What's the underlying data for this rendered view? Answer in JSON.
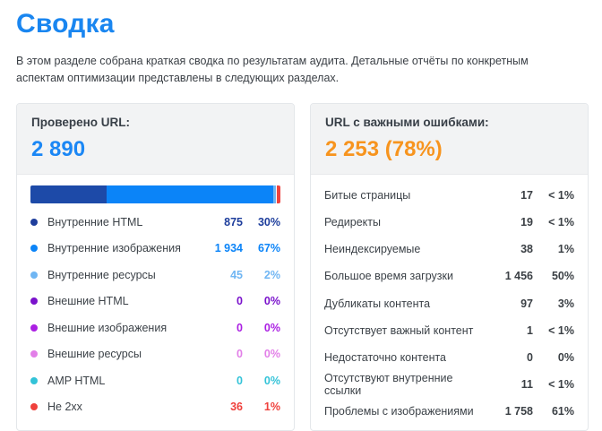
{
  "page": {
    "title": "Сводка",
    "description": "В этом разделе собрана краткая сводка по результатам аудита. Детальные отчёты по конкретным аспектам оптимизации представлены в следующих разделах."
  },
  "checked_card": {
    "title": "Проверено URL:",
    "total": "2 890",
    "total_color": "#1b87f5",
    "legend": [
      {
        "label": "Внутренние HTML",
        "count": "875",
        "percent": "30%",
        "color": "#1e3e9c"
      },
      {
        "label": "Внутренние изображения",
        "count": "1 934",
        "percent": "67%",
        "color": "#0b84f8"
      },
      {
        "label": "Внутренние ресурсы",
        "count": "45",
        "percent": "2%",
        "color": "#70b6f3"
      },
      {
        "label": "Внешние HTML",
        "count": "0",
        "percent": "0%",
        "color": "#7a12cc"
      },
      {
        "label": "Внешние изображения",
        "count": "0",
        "percent": "0%",
        "color": "#ab1fe3"
      },
      {
        "label": "Внешние ресурсы",
        "count": "0",
        "percent": "0%",
        "color": "#e27fe8"
      },
      {
        "label": "AMP HTML",
        "count": "0",
        "percent": "0%",
        "color": "#33c3d8"
      },
      {
        "label": "Не 2xx",
        "count": "36",
        "percent": "1%",
        "color": "#ef413c"
      }
    ]
  },
  "errors_card": {
    "title": "URL с важными ошибками:",
    "total": "2 253 (78%)",
    "total_color": "#f7941e",
    "rows": [
      {
        "label": "Битые страницы",
        "count": "17",
        "percent": "< 1%"
      },
      {
        "label": "Редиректы",
        "count": "19",
        "percent": "< 1%"
      },
      {
        "label": "Неиндексируемые",
        "count": "38",
        "percent": "1%"
      },
      {
        "label": "Большое время загрузки",
        "count": "1 456",
        "percent": "50%"
      },
      {
        "label": "Дубликаты контента",
        "count": "97",
        "percent": "3%"
      },
      {
        "label": "Отсутствует важный контент",
        "count": "1",
        "percent": "< 1%"
      },
      {
        "label": "Недостаточно контента",
        "count": "0",
        "percent": "0%"
      },
      {
        "label": "Отсутствуют внутренние ссылки",
        "count": "11",
        "percent": "< 1%"
      },
      {
        "label": "Проблемы с изображениями",
        "count": "1 758",
        "percent": "61%"
      }
    ]
  },
  "chart_data": {
    "type": "bar",
    "stacked": true,
    "title": "Проверено URL: 2 890",
    "categories": [
      "Внутренние HTML",
      "Внутренние изображения",
      "Внутренние ресурсы",
      "Внешние HTML",
      "Внешние изображения",
      "Внешние ресурсы",
      "AMP HTML",
      "Не 2xx"
    ],
    "values": [
      875,
      1934,
      45,
      0,
      0,
      0,
      0,
      36
    ],
    "percent_labels": [
      "30%",
      "67%",
      "2%",
      "0%",
      "0%",
      "0%",
      "0%",
      "1%"
    ],
    "colors": [
      "#1e3e9c",
      "#0b84f8",
      "#70b6f3",
      "#7a12cc",
      "#ab1fe3",
      "#e27fe8",
      "#33c3d8",
      "#ef413c"
    ],
    "legend_position": "below",
    "grid": false
  }
}
